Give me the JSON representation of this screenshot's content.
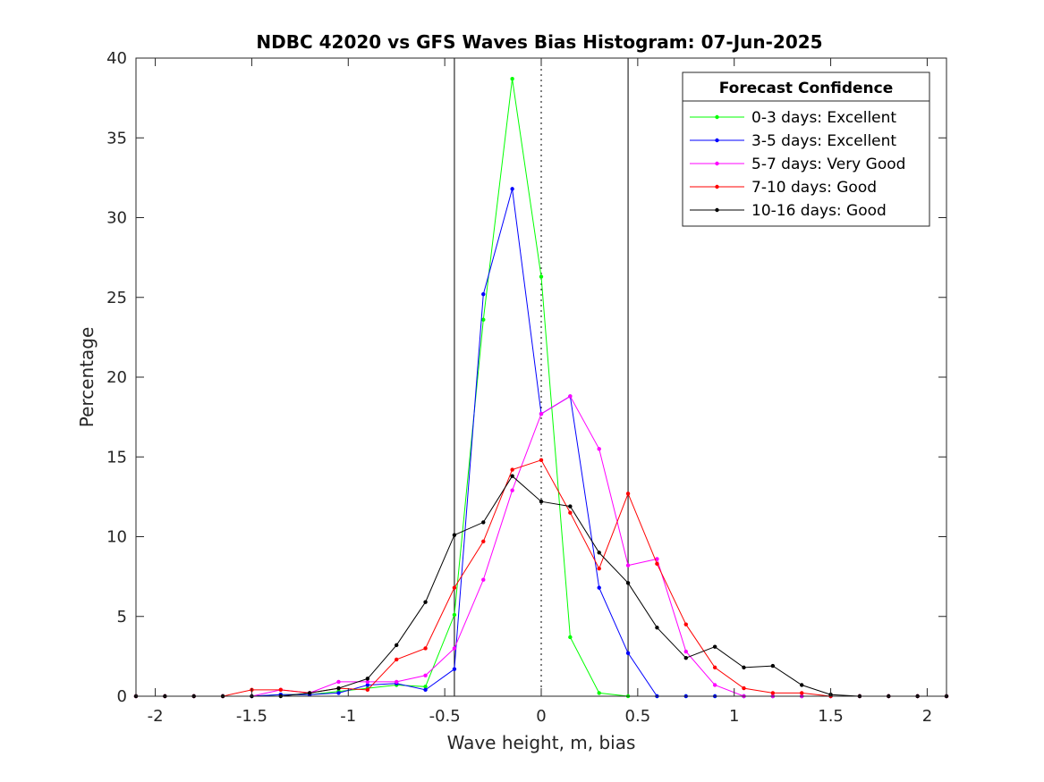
{
  "chart_data": {
    "type": "line",
    "title": "NDBC 42020 vs GFS Waves Bias Histogram: 07-Jun-2025",
    "xlabel": "Wave height, m, bias",
    "ylabel": "Percentage",
    "xlim": [
      -2.1,
      2.1
    ],
    "ylim": [
      0,
      40
    ],
    "xticks": [
      -2,
      -1.5,
      -1,
      -0.5,
      0,
      0.5,
      1,
      1.5,
      2
    ],
    "xtick_labels": [
      "-2",
      "-1.5",
      "-1",
      "-0.5",
      "0",
      "0.5",
      "1",
      "1.5",
      "2"
    ],
    "yticks": [
      0,
      5,
      10,
      15,
      20,
      25,
      30,
      35,
      40
    ],
    "ytick_labels": [
      "0",
      "5",
      "10",
      "15",
      "20",
      "25",
      "30",
      "35",
      "40"
    ],
    "grid": false,
    "legend": {
      "title": "Forecast Confidence",
      "placement": "top-right"
    },
    "reference_lines": [
      {
        "x": -0.45,
        "style": "solid",
        "color": "#000000"
      },
      {
        "x": 0,
        "style": "dotted",
        "color": "#000000"
      },
      {
        "x": 0.45,
        "style": "solid",
        "color": "#000000"
      }
    ],
    "x": [
      -2.1,
      -1.95,
      -1.8,
      -1.65,
      -1.5,
      -1.35,
      -1.2,
      -1.05,
      -0.9,
      -0.75,
      -0.6,
      -0.45,
      -0.3,
      -0.15,
      0,
      0.15,
      0.3,
      0.45,
      0.6,
      0.75,
      0.9,
      1.05,
      1.2,
      1.35,
      1.5,
      1.65,
      1.8,
      1.95,
      2.1
    ],
    "series": [
      {
        "name": "0-3 days: Excellent",
        "color": "#00ff00",
        "values": [
          0,
          0,
          0,
          0,
          0,
          0.1,
          0.1,
          0.3,
          0.5,
          0.7,
          0.6,
          5.1,
          23.6,
          38.7,
          26.3,
          3.7,
          0.2,
          0,
          0,
          0,
          0,
          0,
          0,
          0,
          0,
          0,
          0,
          0,
          0
        ]
      },
      {
        "name": "3-5 days: Excellent",
        "color": "#0000ff",
        "values": [
          0,
          0,
          0,
          0,
          0,
          0.1,
          0.1,
          0.2,
          0.7,
          0.8,
          0.4,
          1.7,
          25.2,
          31.8,
          17.7,
          18.8,
          6.8,
          2.7,
          0,
          0,
          0,
          0,
          0,
          0,
          0,
          0,
          0,
          0,
          0
        ]
      },
      {
        "name": "5-7 days: Very Good",
        "color": "#ff00ff",
        "values": [
          0,
          0,
          0,
          0,
          0,
          0.4,
          0.2,
          0.9,
          0.9,
          0.9,
          1.3,
          3.0,
          7.3,
          12.9,
          17.7,
          18.8,
          15.5,
          8.2,
          8.6,
          2.8,
          0.7,
          0,
          0,
          0,
          0,
          0,
          0,
          0,
          0
        ]
      },
      {
        "name": "7-10 days: Good",
        "color": "#ff0000",
        "values": [
          0,
          0,
          0,
          0,
          0.4,
          0.4,
          0.2,
          0.5,
          0.4,
          2.3,
          3.0,
          6.8,
          9.7,
          14.2,
          14.8,
          11.5,
          8.0,
          12.7,
          8.3,
          4.5,
          1.8,
          0.5,
          0.2,
          0.2,
          0,
          0,
          0,
          0,
          0
        ]
      },
      {
        "name": "10-16 days: Good",
        "color": "#000000",
        "values": [
          0,
          0,
          0,
          0,
          0,
          0,
          0.2,
          0.5,
          1.1,
          3.2,
          5.9,
          10.1,
          10.9,
          13.8,
          12.2,
          11.9,
          9.0,
          7.1,
          4.3,
          2.4,
          3.1,
          1.8,
          1.9,
          0.7,
          0.1,
          0,
          0,
          0,
          0
        ]
      }
    ]
  }
}
